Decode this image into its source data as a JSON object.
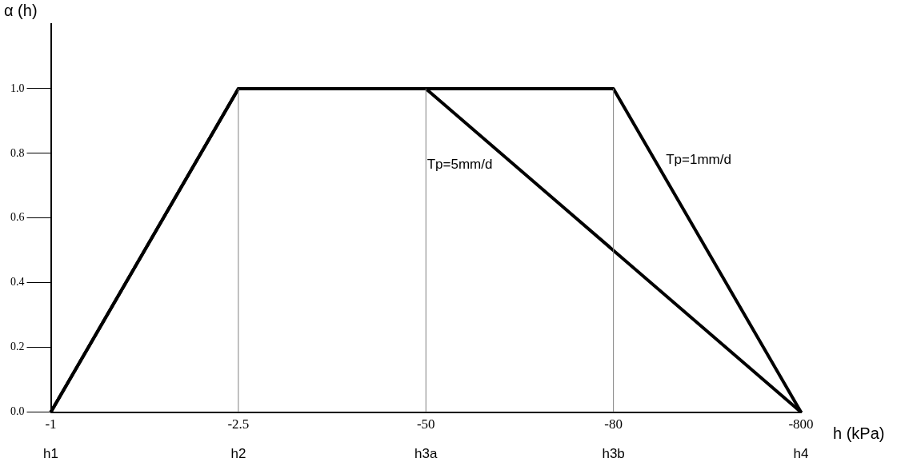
{
  "chart_data": {
    "type": "line",
    "xlabel": "h (kPa)",
    "ylabel": "α (h)",
    "categories": [
      "-1",
      "-2.5",
      "-50",
      "-80",
      "-800"
    ],
    "series": [
      {
        "name": "Tp=1mm/d",
        "color": "#000000",
        "values": [
          0,
          1,
          1,
          1,
          0
        ]
      },
      {
        "name": "Tp=5mm/d",
        "color": "#000000",
        "values": [
          0,
          1,
          1,
          null,
          0
        ]
      }
    ],
    "ylim": [
      0,
      1.2
    ],
    "yticks": [
      {
        "value": 0,
        "label": "0.0"
      },
      {
        "value": 0.2,
        "label": "0.2"
      },
      {
        "value": 0.4,
        "label": "0.4"
      },
      {
        "value": 0.6,
        "label": "0.6"
      },
      {
        "value": 0.8,
        "label": "0.8"
      },
      {
        "value": 1,
        "label": "1.0"
      }
    ],
    "ref_lines": [
      {
        "axis": "x",
        "value": "-2.5",
        "color": "#808080"
      },
      {
        "axis": "x",
        "value": "-50",
        "color": "#808080"
      },
      {
        "axis": "x",
        "value": "-80",
        "color": "#808080"
      }
    ],
    "annotations": [
      "h1",
      "h2",
      "h3a",
      "h3b",
      "h4"
    ],
    "grid": false,
    "legend": false,
    "marker": "none",
    "line_style": "solid"
  }
}
